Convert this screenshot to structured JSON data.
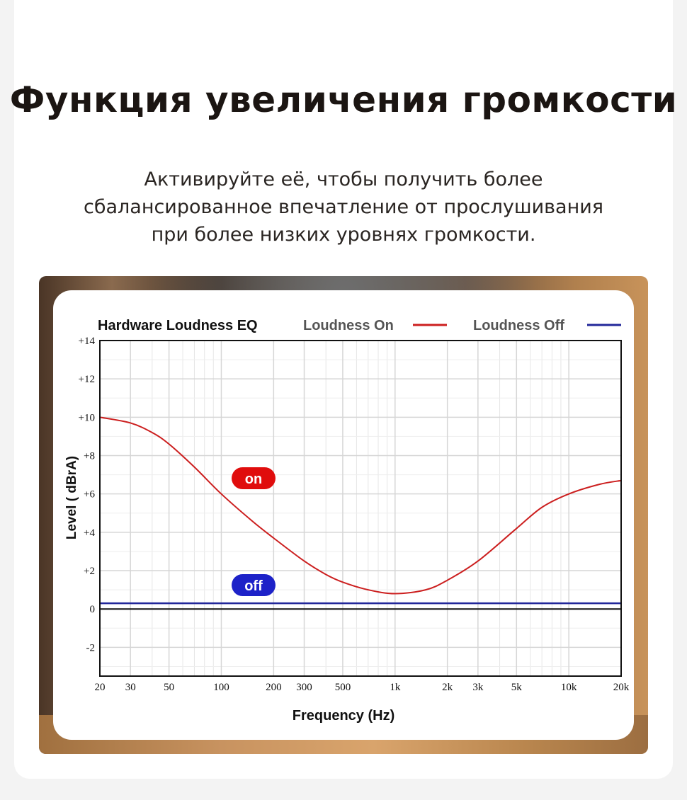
{
  "heading": {
    "title": "Функция увеличения громкости",
    "subtitle_lines": [
      "Активируйте её, чтобы получить более",
      "сбалансированное впечатление от прослушивания",
      "при более низких уровнях громкости."
    ]
  },
  "colors": {
    "on": "#cc1f1f",
    "off": "#22279a",
    "on_badge": "#e00d0d",
    "off_badge": "#1d22c8"
  },
  "chart_data": {
    "type": "line",
    "title": "Hardware Loudness EQ",
    "xlabel": "Frequency (Hz)",
    "ylabel": "Level ( dBrA)",
    "x_scale": "log",
    "xlim": [
      20,
      20000
    ],
    "ylim": [
      -3.5,
      14
    ],
    "grid": true,
    "legend_position": "top-right",
    "x_ticks": [
      {
        "value": 20,
        "label": "20"
      },
      {
        "value": 30,
        "label": "30"
      },
      {
        "value": 50,
        "label": "50"
      },
      {
        "value": 100,
        "label": "100"
      },
      {
        "value": 200,
        "label": "200"
      },
      {
        "value": 300,
        "label": "300"
      },
      {
        "value": 500,
        "label": "500"
      },
      {
        "value": 1000,
        "label": "1k"
      },
      {
        "value": 2000,
        "label": "2k"
      },
      {
        "value": 3000,
        "label": "3k"
      },
      {
        "value": 5000,
        "label": "5k"
      },
      {
        "value": 10000,
        "label": "10k"
      },
      {
        "value": 20000,
        "label": "20k"
      }
    ],
    "y_ticks": [
      {
        "value": 14,
        "label": "+14"
      },
      {
        "value": 12,
        "label": "+12"
      },
      {
        "value": 10,
        "label": "+10"
      },
      {
        "value": 8,
        "label": "+8"
      },
      {
        "value": 6,
        "label": "+6"
      },
      {
        "value": 4,
        "label": "+4"
      },
      {
        "value": 2,
        "label": "+2"
      },
      {
        "value": 0,
        "label": "0"
      },
      {
        "value": -2,
        "label": "-2"
      }
    ],
    "series": [
      {
        "name": "Loudness On",
        "badge": "on",
        "color": "#cc1f1f",
        "x": [
          20,
          30,
          40,
          50,
          70,
          100,
          150,
          200,
          300,
          400,
          500,
          700,
          1000,
          1500,
          2000,
          3000,
          5000,
          7000,
          10000,
          15000,
          20000
        ],
        "y": [
          10.0,
          9.7,
          9.2,
          8.6,
          7.4,
          6.0,
          4.6,
          3.7,
          2.5,
          1.8,
          1.4,
          1.0,
          0.8,
          1.0,
          1.5,
          2.5,
          4.2,
          5.3,
          6.0,
          6.5,
          6.7
        ]
      },
      {
        "name": "Loudness Off",
        "badge": "off",
        "color": "#22279a",
        "x": [
          20,
          20000
        ],
        "y": [
          0.3,
          0.3
        ]
      }
    ]
  }
}
